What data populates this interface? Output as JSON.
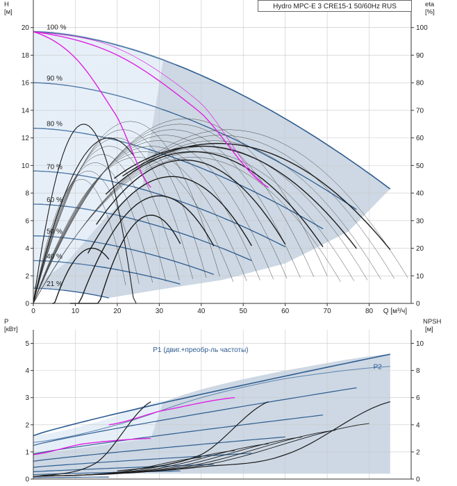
{
  "title": "Hydro MPC-E 3 CRE15-1 50/60Hz RUS",
  "colors": {
    "region": "#cdd8e4",
    "region_light": "#e6eff8",
    "curve_blue": "#2d5b8e",
    "curve_black": "#1a1a1a",
    "curve_magenta": "#e020e0",
    "grid": "#c8c8c8"
  },
  "chart_data": [
    {
      "type": "line",
      "name": "head_efficiency",
      "x_label": "Q [м³/ч]",
      "y_label_left": [
        "H",
        "[м]"
      ],
      "y_label_right": [
        "eta",
        "[%]"
      ],
      "x_range": [
        0,
        90
      ],
      "y_range_left": [
        0,
        22
      ],
      "y_range_right": [
        0,
        110
      ],
      "x_ticks": [
        0,
        10,
        20,
        30,
        40,
        50,
        60,
        70,
        80
      ],
      "y_ticks_left": [
        0,
        2,
        4,
        6,
        8,
        10,
        12,
        14,
        16,
        18,
        20
      ],
      "y_ticks_right": [
        0,
        10,
        20,
        30,
        40,
        50,
        60,
        70,
        80,
        90,
        100
      ],
      "speed_labels": [
        {
          "text": "100 %",
          "q": 2.5,
          "h": 19.7
        },
        {
          "text": "90 %",
          "q": 2.5,
          "h": 16.0
        },
        {
          "text": "80 %",
          "q": 2.5,
          "h": 12.7
        },
        {
          "text": "70 %",
          "q": 2.5,
          "h": 9.6
        },
        {
          "text": "60 %",
          "q": 2.5,
          "h": 7.2
        },
        {
          "text": "50 %",
          "q": 2.5,
          "h": 4.9
        },
        {
          "text": "40 %",
          "q": 2.5,
          "h": 3.1
        },
        {
          "text": "21 %",
          "q": 2.5,
          "h": 1.1
        }
      ],
      "qh_curves": [
        {
          "name": "100 %",
          "h0": 19.7,
          "qmax": 85,
          "hend": 8.3
        },
        {
          "name": "90 %",
          "h0": 16.0,
          "qmax": 77,
          "hend": 6.8
        },
        {
          "name": "80 %",
          "h0": 12.7,
          "qmax": 69,
          "hend": 5.4
        },
        {
          "name": "70 %",
          "h0": 9.6,
          "qmax": 60,
          "hend": 4.1
        },
        {
          "name": "60 %",
          "h0": 7.2,
          "qmax": 52,
          "hend": 3.1
        },
        {
          "name": "50 %",
          "h0": 4.9,
          "qmax": 43,
          "hend": 2.1
        },
        {
          "name": "40 %",
          "h0": 3.1,
          "qmax": 35,
          "hend": 1.4
        },
        {
          "name": "21 %",
          "h0": 1.1,
          "qmax": 18,
          "hend": 0.4
        }
      ],
      "efficiency_curves_1pump": [
        {
          "qmax": 18,
          "peak_eta": 20,
          "q_peak": 14
        },
        {
          "qmax": 35,
          "peak_eta": 32,
          "q_peak": 28
        },
        {
          "qmax": 43,
          "peak_eta": 39,
          "q_peak": 30
        },
        {
          "qmax": 52,
          "peak_eta": 46,
          "q_peak": 33
        },
        {
          "qmax": 60,
          "peak_eta": 52,
          "q_peak": 36
        },
        {
          "qmax": 69,
          "peak_eta": 55,
          "q_peak": 38
        },
        {
          "qmax": 77,
          "peak_eta": 57,
          "q_peak": 40
        },
        {
          "qmax": 85,
          "peak_eta": 58,
          "q_peak": 44
        }
      ],
      "magenta_system_curves": [
        {
          "q": [
            0,
            10,
            20,
            28
          ],
          "h": [
            19.7,
            17.8,
            13.5,
            8.4
          ]
        },
        {
          "q": [
            0,
            20,
            40,
            56
          ],
          "h": [
            19.7,
            18.0,
            13.8,
            8.4
          ]
        }
      ]
    },
    {
      "type": "line",
      "name": "power_npsh",
      "x_range": [
        0,
        90
      ],
      "y_label_left": [
        "P",
        "[кВт]"
      ],
      "y_label_right": [
        "NPSH",
        "[м]"
      ],
      "y_range_left": [
        0,
        5.5
      ],
      "y_range_right": [
        0,
        11
      ],
      "y_ticks_left": [
        0,
        1,
        2,
        3,
        4,
        5
      ],
      "y_ticks_right": [
        0,
        2,
        4,
        6,
        8,
        10
      ],
      "series_labels": {
        "p1": "P1 (двиг.+преобр-ль частоты)",
        "p2": "P2"
      },
      "p1_100": {
        "q": [
          0,
          20,
          40,
          60,
          85
        ],
        "p": [
          1.6,
          2.3,
          3.3,
          4.0,
          4.6
        ]
      },
      "p2_100": {
        "q": [
          0,
          20,
          40,
          60,
          85
        ],
        "p": [
          1.35,
          2.0,
          3.0,
          3.7,
          4.15
        ]
      },
      "npsh": [
        {
          "q": [
            0,
            20,
            40,
            60,
            85
          ],
          "n": [
            0.2,
            0.4,
            0.9,
            1.8,
            5.7
          ]
        },
        {
          "q": [
            0,
            15,
            28
          ],
          "n": [
            0.2,
            1.2,
            5.7
          ]
        },
        {
          "q": [
            20,
            40,
            56
          ],
          "n": [
            0.6,
            1.8,
            5.7
          ]
        }
      ]
    }
  ]
}
